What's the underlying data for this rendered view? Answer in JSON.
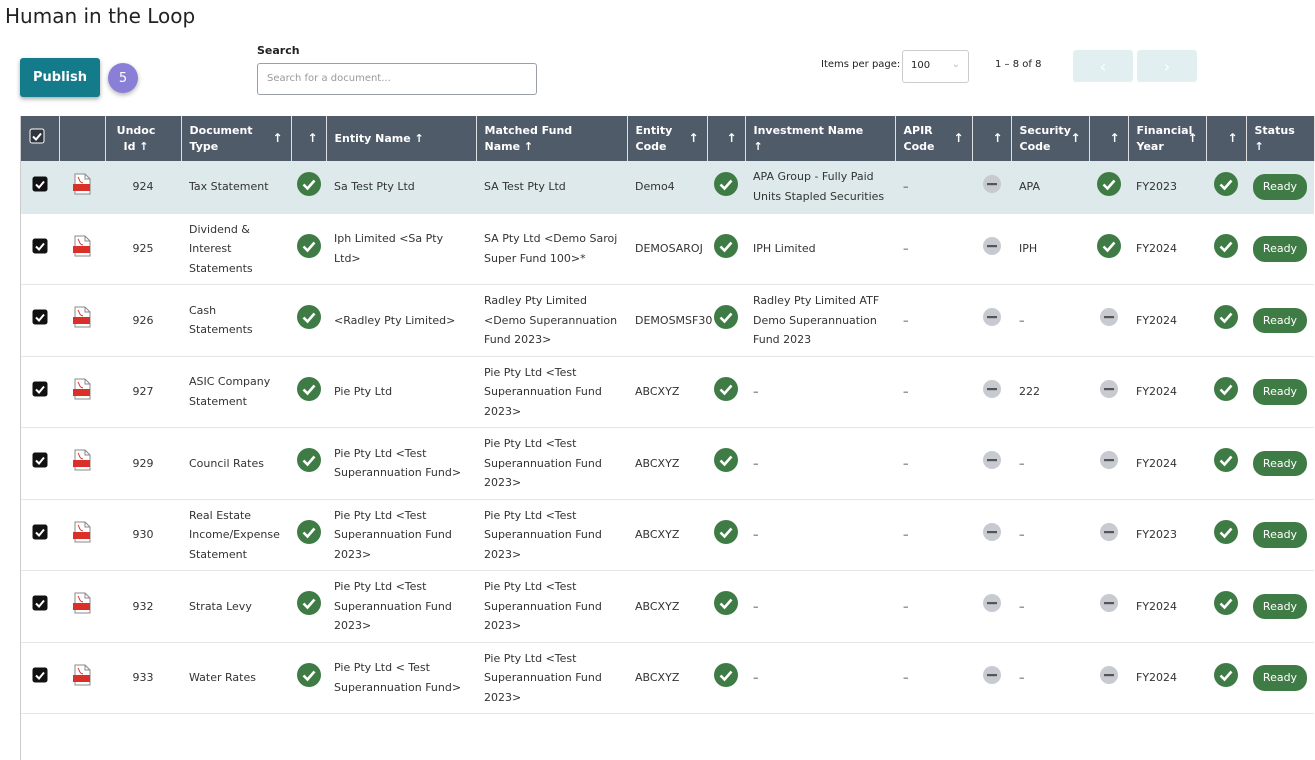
{
  "header": {
    "title": "Human in the Loop"
  },
  "toolbar": {
    "publish": "Publish",
    "badge": 5,
    "search_label": "Search",
    "search_placeholder": "Search for a document...",
    "items_per_page_label": "Items per page:",
    "items_per_page": 100,
    "range": "1 – 8 of 8"
  },
  "table": {
    "columns": [
      "Undoc Id",
      "Document Type",
      "Entity Name",
      "Matched Fund Name",
      "Entity Code",
      "Investment Name",
      "APIR Code",
      "Security Code",
      "Financial Year",
      "Status"
    ],
    "rows": [
      [
        924,
        "Tax Statement",
        "Sa Test Pty Ltd",
        "SA Test Pty Ltd",
        "Demo4",
        "APA Group - Fully Paid Units Stapled Securities",
        "–",
        "APA",
        "FY2023",
        "Ready"
      ],
      [
        925,
        "Dividend & Interest Statements",
        "Iph Limited <Sa Pty Ltd>",
        "SA Pty Ltd <Demo Saroj Super Fund 100>*",
        "DEMOSAROJ",
        "IPH Limited",
        "–",
        "IPH",
        "FY2024",
        "Ready"
      ],
      [
        926,
        "Cash Statements",
        "<Radley Pty Limited>",
        "Radley Pty Limited <Demo Superannuation Fund 2023>",
        "DEMOSMSF30",
        "Radley Pty Limited ATF Demo Superannuation Fund 2023",
        "–",
        "–",
        "FY2024",
        "Ready"
      ],
      [
        927,
        "ASIC Company Statement",
        "Pie Pty Ltd",
        "Pie Pty Ltd <Test Superannuation Fund 2023>",
        "ABCXYZ",
        "–",
        "–",
        "222",
        "FY2024",
        "Ready"
      ],
      [
        929,
        "Council Rates",
        "Pie Pty Ltd <Test Superannuation Fund>",
        "Pie Pty Ltd <Test Superannuation Fund 2023>",
        "ABCXYZ",
        "–",
        "–",
        "–",
        "FY2024",
        "Ready"
      ],
      [
        930,
        "Real Estate Income/Expense Statement",
        "Pie Pty Ltd <Test Superannuation Fund 2023>",
        "Pie Pty Ltd <Test Superannuation Fund 2023>",
        "ABCXYZ",
        "–",
        "–",
        "–",
        "FY2023",
        "Ready"
      ],
      [
        932,
        "Strata Levy",
        "Pie Pty Ltd <Test Superannuation Fund 2023>",
        "Pie Pty Ltd <Test Superannuation Fund 2023>",
        "ABCXYZ",
        "–",
        "–",
        "–",
        "FY2024",
        "Ready"
      ],
      [
        933,
        "Water Rates",
        "Pie Pty Ltd < Test Superannuation Fund>",
        "Pie Pty Ltd <Test Superannuation Fund 2023>",
        "ABCXYZ",
        "–",
        "–",
        "–",
        "FY2024",
        "Ready"
      ]
    ]
  }
}
